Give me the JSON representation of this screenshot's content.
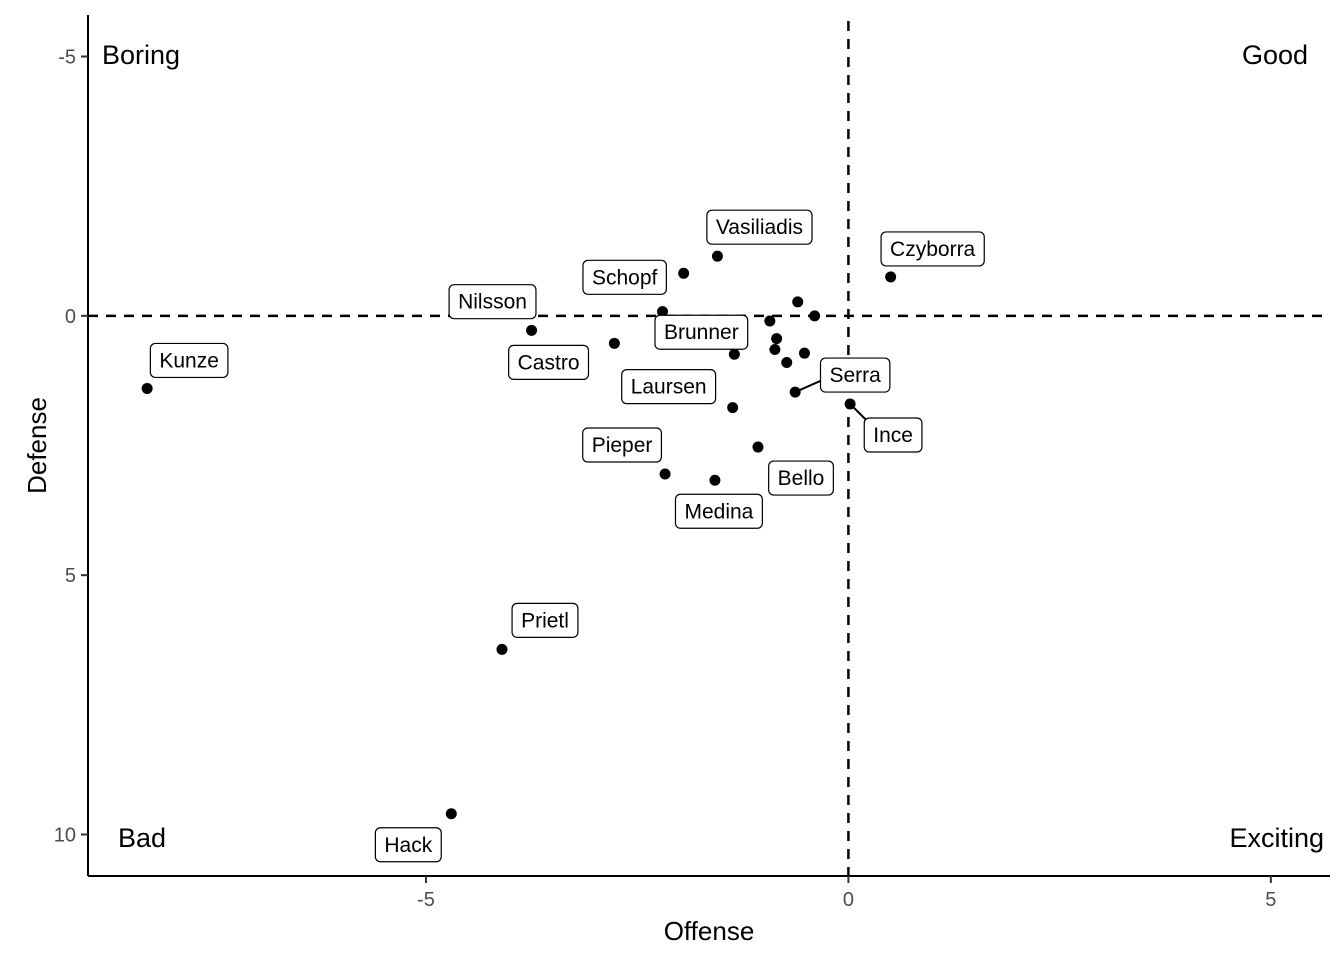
{
  "chart_data": {
    "type": "scatter",
    "title": "",
    "xlabel": "Offense",
    "ylabel": "Defense",
    "xlim": [
      -9.0,
      5.7
    ],
    "ylim": [
      -5.8,
      10.8
    ],
    "y_reversed": true,
    "x_ticks": [
      -5,
      0,
      5
    ],
    "y_ticks": [
      -5,
      0,
      5,
      10
    ],
    "reference_lines": [
      {
        "axis": "x",
        "value": 0,
        "style": "dashed"
      },
      {
        "axis": "y",
        "value": 0,
        "style": "dashed"
      }
    ],
    "quadrant_labels": [
      {
        "text": "Boring",
        "corner": "top-left"
      },
      {
        "text": "Good",
        "corner": "top-right"
      },
      {
        "text": "Bad",
        "corner": "bottom-left"
      },
      {
        "text": "Exciting",
        "corner": "bottom-right"
      }
    ],
    "points": [
      {
        "label": "Vasiliadis",
        "x": -1.55,
        "y": -1.15
      },
      {
        "label": "Czyborra",
        "x": 0.5,
        "y": -0.75
      },
      {
        "label": "Schopf",
        "x": -1.95,
        "y": -0.82
      },
      {
        "label": "Nilsson",
        "x": -2.2,
        "y": -0.08
      },
      {
        "label": "Castro",
        "x": -3.75,
        "y": 0.28
      },
      {
        "label": "Brunner",
        "x": -1.35,
        "y": 0.74
      },
      {
        "label": "Kunze",
        "x": -8.3,
        "y": 1.4
      },
      {
        "label": "Laursen",
        "x": -1.37,
        "y": 1.77
      },
      {
        "label": "Serra",
        "x": -0.63,
        "y": 1.47
      },
      {
        "label": "Ince",
        "x": 0.02,
        "y": 1.7
      },
      {
        "label": "Pieper",
        "x": -2.17,
        "y": 3.05
      },
      {
        "label": "Bello",
        "x": -1.07,
        "y": 2.53
      },
      {
        "label": "Medina",
        "x": -1.58,
        "y": 3.17
      },
      {
        "label": "Prietl",
        "x": -4.1,
        "y": 6.43
      },
      {
        "label": "Hack",
        "x": -4.7,
        "y": 9.6
      },
      {
        "label": "",
        "x": -2.77,
        "y": 0.53
      },
      {
        "label": "",
        "x": -0.6,
        "y": -0.27
      },
      {
        "label": "",
        "x": -0.4,
        "y": 0.0
      },
      {
        "label": "",
        "x": -0.93,
        "y": 0.1
      },
      {
        "label": "",
        "x": -0.85,
        "y": 0.44
      },
      {
        "label": "",
        "x": -0.87,
        "y": 0.65
      },
      {
        "label": "",
        "x": -0.52,
        "y": 0.72
      },
      {
        "label": "",
        "x": -0.73,
        "y": 0.9
      }
    ],
    "grid": false,
    "legend": "none"
  }
}
